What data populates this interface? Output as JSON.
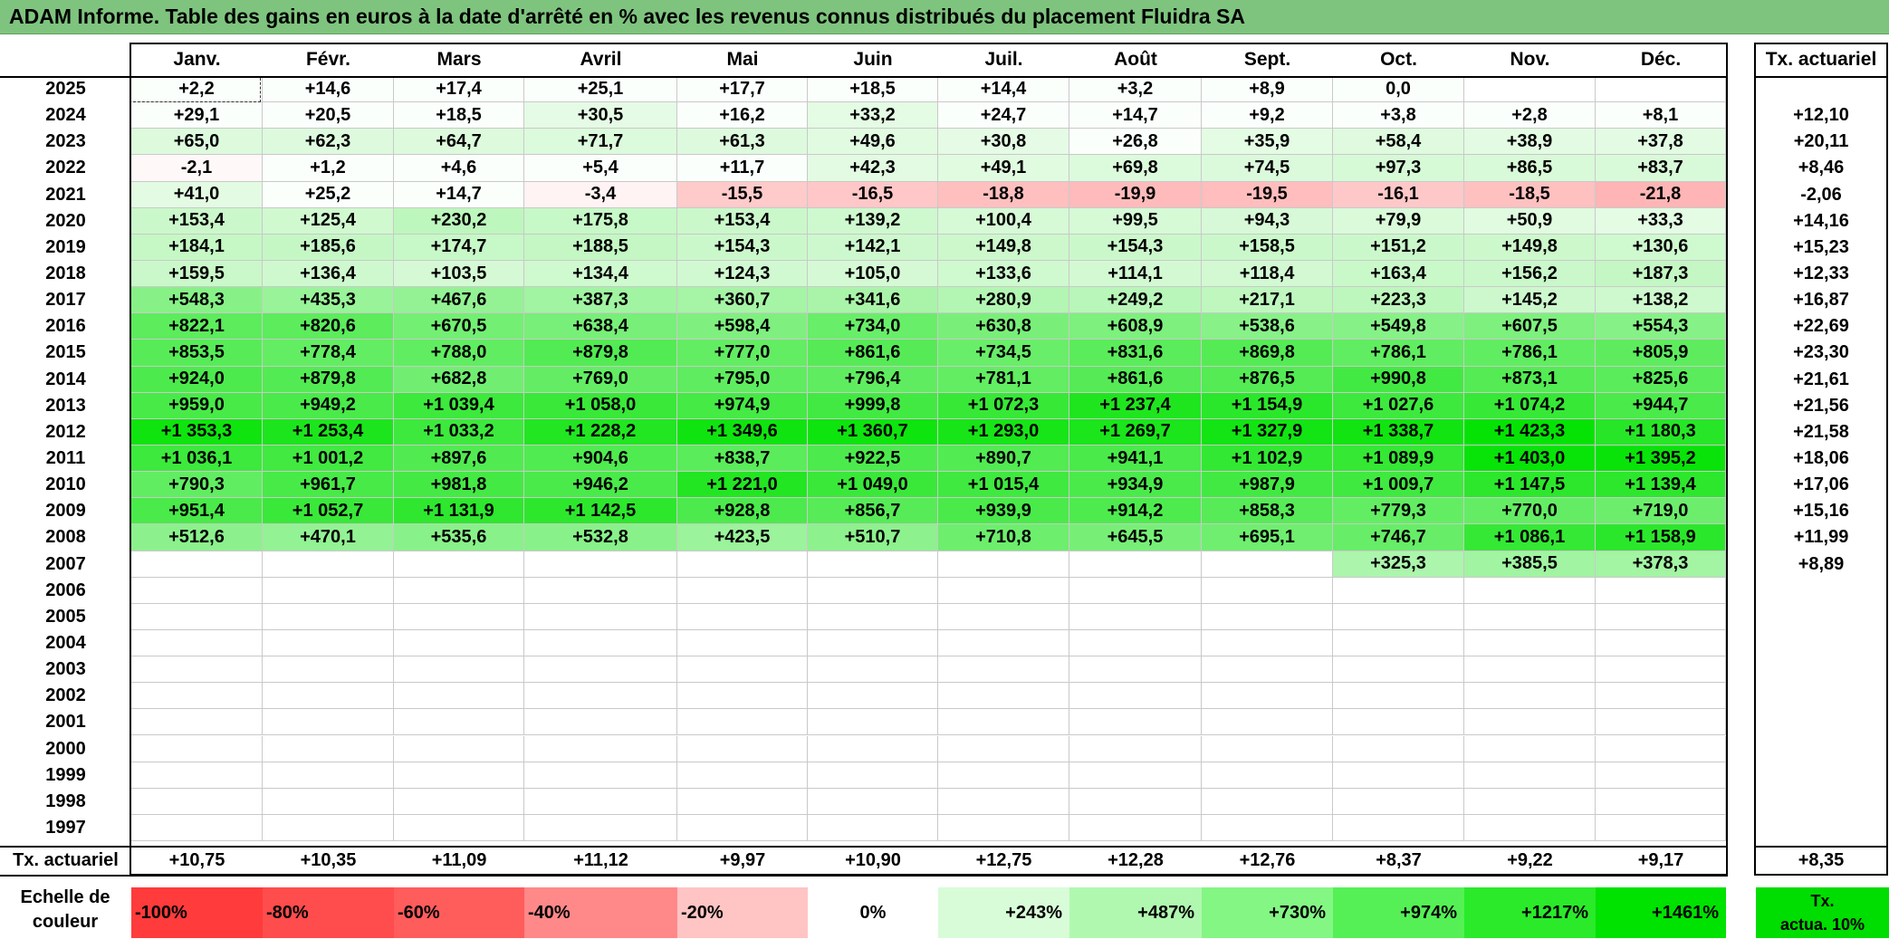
{
  "title": "ADAM Informe. Table des gains en euros à la date d'arrêté en % avec les revenus connus distribués du placement Fluidra SA",
  "months": [
    "Janv.",
    "Févr.",
    "Mars",
    "Avril",
    "Mai",
    "Juin",
    "Juil.",
    "Août",
    "Sept.",
    "Oct.",
    "Nov.",
    "Déc."
  ],
  "tx_header": "Tx. actuariel",
  "years": [
    "2025",
    "2024",
    "2023",
    "2022",
    "2021",
    "2020",
    "2019",
    "2018",
    "2017",
    "2016",
    "2015",
    "2014",
    "2013",
    "2012",
    "2011",
    "2010",
    "2009",
    "2008",
    "2007",
    "2006",
    "2005",
    "2004",
    "2003",
    "2002",
    "2001",
    "2000",
    "1999",
    "1998",
    "1997"
  ],
  "rows": [
    [
      "+2,2",
      "+14,6",
      "+17,4",
      "+25,1",
      "+17,7",
      "+18,5",
      "+14,4",
      "+3,2",
      "+8,9",
      "0,0",
      "",
      ""
    ],
    [
      "+29,1",
      "+20,5",
      "+18,5",
      "+30,5",
      "+16,2",
      "+33,2",
      "+24,7",
      "+14,7",
      "+9,2",
      "+3,8",
      "+2,8",
      "+8,1"
    ],
    [
      "+65,0",
      "+62,3",
      "+64,7",
      "+71,7",
      "+61,3",
      "+49,6",
      "+30,8",
      "+26,8",
      "+35,9",
      "+58,4",
      "+38,9",
      "+37,8"
    ],
    [
      "-2,1",
      "+1,2",
      "+4,6",
      "+5,4",
      "+11,7",
      "+42,3",
      "+49,1",
      "+69,8",
      "+74,5",
      "+97,3",
      "+86,5",
      "+83,7"
    ],
    [
      "+41,0",
      "+25,2",
      "+14,7",
      "-3,4",
      "-15,5",
      "-16,5",
      "-18,8",
      "-19,9",
      "-19,5",
      "-16,1",
      "-18,5",
      "-21,8"
    ],
    [
      "+153,4",
      "+125,4",
      "+230,2",
      "+175,8",
      "+153,4",
      "+139,2",
      "+100,4",
      "+99,5",
      "+94,3",
      "+79,9",
      "+50,9",
      "+33,3"
    ],
    [
      "+184,1",
      "+185,6",
      "+174,7",
      "+188,5",
      "+154,3",
      "+142,1",
      "+149,8",
      "+154,3",
      "+158,5",
      "+151,2",
      "+149,8",
      "+130,6"
    ],
    [
      "+159,5",
      "+136,4",
      "+103,5",
      "+134,4",
      "+124,3",
      "+105,0",
      "+133,6",
      "+114,1",
      "+118,4",
      "+163,4",
      "+156,2",
      "+187,3"
    ],
    [
      "+548,3",
      "+435,3",
      "+467,6",
      "+387,3",
      "+360,7",
      "+341,6",
      "+280,9",
      "+249,2",
      "+217,1",
      "+223,3",
      "+145,2",
      "+138,2"
    ],
    [
      "+822,1",
      "+820,6",
      "+670,5",
      "+638,4",
      "+598,4",
      "+734,0",
      "+630,8",
      "+608,9",
      "+538,6",
      "+549,8",
      "+607,5",
      "+554,3"
    ],
    [
      "+853,5",
      "+778,4",
      "+788,0",
      "+879,8",
      "+777,0",
      "+861,6",
      "+734,5",
      "+831,6",
      "+869,8",
      "+786,1",
      "+786,1",
      "+805,9"
    ],
    [
      "+924,0",
      "+879,8",
      "+682,8",
      "+769,0",
      "+795,0",
      "+796,4",
      "+781,1",
      "+861,6",
      "+876,5",
      "+990,8",
      "+873,1",
      "+825,6"
    ],
    [
      "+959,0",
      "+949,2",
      "+1 039,4",
      "+1 058,0",
      "+974,9",
      "+999,8",
      "+1 072,3",
      "+1 237,4",
      "+1 154,9",
      "+1 027,6",
      "+1 074,2",
      "+944,7"
    ],
    [
      "+1 353,3",
      "+1 253,4",
      "+1 033,2",
      "+1 228,2",
      "+1 349,6",
      "+1 360,7",
      "+1 293,0",
      "+1 269,7",
      "+1 327,9",
      "+1 338,7",
      "+1 423,3",
      "+1 180,3"
    ],
    [
      "+1 036,1",
      "+1 001,2",
      "+897,6",
      "+904,6",
      "+838,7",
      "+922,5",
      "+890,7",
      "+941,1",
      "+1 102,9",
      "+1 089,9",
      "+1 403,0",
      "+1 395,2"
    ],
    [
      "+790,3",
      "+961,7",
      "+981,8",
      "+946,2",
      "+1 221,0",
      "+1 049,0",
      "+1 015,4",
      "+934,9",
      "+987,9",
      "+1 009,7",
      "+1 147,5",
      "+1 139,4"
    ],
    [
      "+951,4",
      "+1 052,7",
      "+1 131,9",
      "+1 142,5",
      "+928,8",
      "+856,7",
      "+939,9",
      "+914,2",
      "+858,3",
      "+779,3",
      "+770,0",
      "+719,0"
    ],
    [
      "+512,6",
      "+470,1",
      "+535,6",
      "+532,8",
      "+423,5",
      "+510,7",
      "+710,8",
      "+645,5",
      "+695,1",
      "+746,7",
      "+1 086,1",
      "+1 158,9"
    ],
    [
      "",
      "",
      "",
      "",
      "",
      "",
      "",
      "",
      "",
      "+325,3",
      "+385,5",
      "+378,3"
    ],
    [
      "",
      "",
      "",
      "",
      "",
      "",
      "",
      "",
      "",
      "",
      "",
      ""
    ],
    [
      "",
      "",
      "",
      "",
      "",
      "",
      "",
      "",
      "",
      "",
      "",
      ""
    ],
    [
      "",
      "",
      "",
      "",
      "",
      "",
      "",
      "",
      "",
      "",
      "",
      ""
    ],
    [
      "",
      "",
      "",
      "",
      "",
      "",
      "",
      "",
      "",
      "",
      "",
      ""
    ],
    [
      "",
      "",
      "",
      "",
      "",
      "",
      "",
      "",
      "",
      "",
      "",
      ""
    ],
    [
      "",
      "",
      "",
      "",
      "",
      "",
      "",
      "",
      "",
      "",
      "",
      ""
    ],
    [
      "",
      "",
      "",
      "",
      "",
      "",
      "",
      "",
      "",
      "",
      "",
      ""
    ],
    [
      "",
      "",
      "",
      "",
      "",
      "",
      "",
      "",
      "",
      "",
      "",
      ""
    ],
    [
      "",
      "",
      "",
      "",
      "",
      "",
      "",
      "",
      "",
      "",
      "",
      ""
    ],
    [
      "",
      "",
      "",
      "",
      "",
      "",
      "",
      "",
      "",
      "",
      "",
      ""
    ]
  ],
  "row_tx": [
    "",
    "+12,10",
    "+20,11",
    "+8,46",
    "-2,06",
    "+14,16",
    "+15,23",
    "+12,33",
    "+16,87",
    "+22,69",
    "+23,30",
    "+21,61",
    "+21,56",
    "+21,58",
    "+18,06",
    "+17,06",
    "+15,16",
    "+11,99",
    "+8,89",
    "",
    "",
    "",
    "",
    "",
    "",
    "",
    "",
    "",
    ""
  ],
  "footer_label": "Tx. actuariel",
  "footer_values": [
    "+10,75",
    "+10,35",
    "+11,09",
    "+11,12",
    "+9,97",
    "+10,90",
    "+12,75",
    "+12,28",
    "+12,76",
    "+8,37",
    "+9,22",
    "+9,17"
  ],
  "footer_total": "+8,35",
  "scale_caption_line1": "Echelle de",
  "scale_caption_line2": "couleur",
  "scale": [
    {
      "label": "-100%",
      "color": "#ff3b3b",
      "align": "left"
    },
    {
      "label": "-80%",
      "color": "#ff4c4c",
      "align": "left"
    },
    {
      "label": "-60%",
      "color": "#ff5c5c",
      "align": "left"
    },
    {
      "label": "-40%",
      "color": "#ff8888",
      "align": "left"
    },
    {
      "label": "-20%",
      "color": "#ffc4c4",
      "align": "left"
    },
    {
      "label": "0%",
      "color": "#ffffff",
      "align": "center"
    },
    {
      "label": "+243%",
      "color": "#d8fcd8",
      "align": "right"
    },
    {
      "label": "+487%",
      "color": "#b0f8b0",
      "align": "right"
    },
    {
      "label": "+730%",
      "color": "#84f684",
      "align": "right"
    },
    {
      "label": "+974%",
      "color": "#55f055",
      "align": "right"
    },
    {
      "label": "+1217%",
      "color": "#2aea2a",
      "align": "right"
    },
    {
      "label": "+1461%",
      "color": "#00e200",
      "align": "right"
    }
  ],
  "scale_tx_line1": "Tx.",
  "scale_tx_line2": "actua. 10%"
}
